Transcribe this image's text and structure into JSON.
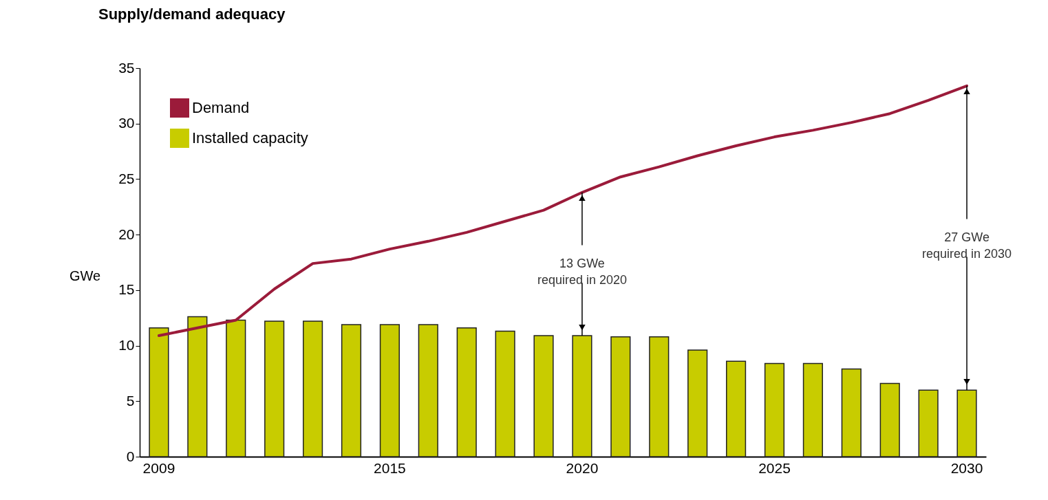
{
  "chart_data": {
    "type": "bar",
    "title": "Supply/demand adequacy",
    "ylabel": "GWe",
    "categories": [
      "2009",
      null,
      null,
      null,
      null,
      null,
      "2015",
      null,
      null,
      null,
      null,
      "2020",
      null,
      null,
      null,
      null,
      "2025",
      null,
      null,
      null,
      null,
      "2030"
    ],
    "series": [
      {
        "name": "Demand",
        "type": "line",
        "color": "#9b1b3a",
        "values": [
          10.9,
          11.6,
          12.3,
          15.1,
          17.4,
          17.8,
          18.7,
          19.4,
          20.2,
          21.2,
          22.2,
          23.8,
          25.2,
          26.1,
          27.1,
          28.0,
          28.8,
          29.4,
          30.1,
          30.9,
          32.1,
          33.4
        ]
      },
      {
        "name": "Installed capacity",
        "color": "#c8cc00",
        "values": [
          11.6,
          12.6,
          12.3,
          12.2,
          12.2,
          11.9,
          11.9,
          11.9,
          11.6,
          11.3,
          10.9,
          10.9,
          10.8,
          10.8,
          9.6,
          8.6,
          8.4,
          8.4,
          7.9,
          6.6,
          6.0,
          6.0
        ]
      }
    ],
    "ylim": [
      0,
      35
    ],
    "yticks": [
      0,
      5,
      10,
      15,
      20,
      25,
      30,
      35
    ],
    "grid": false,
    "legend": "top left",
    "annotations": [
      {
        "text": "13 GWe\nrequired in 2020",
        "x": "2020",
        "y": 23.8
      },
      {
        "text": "27 GWe\nrequired in 2030",
        "x": "2030",
        "y": 33.4
      }
    ]
  }
}
